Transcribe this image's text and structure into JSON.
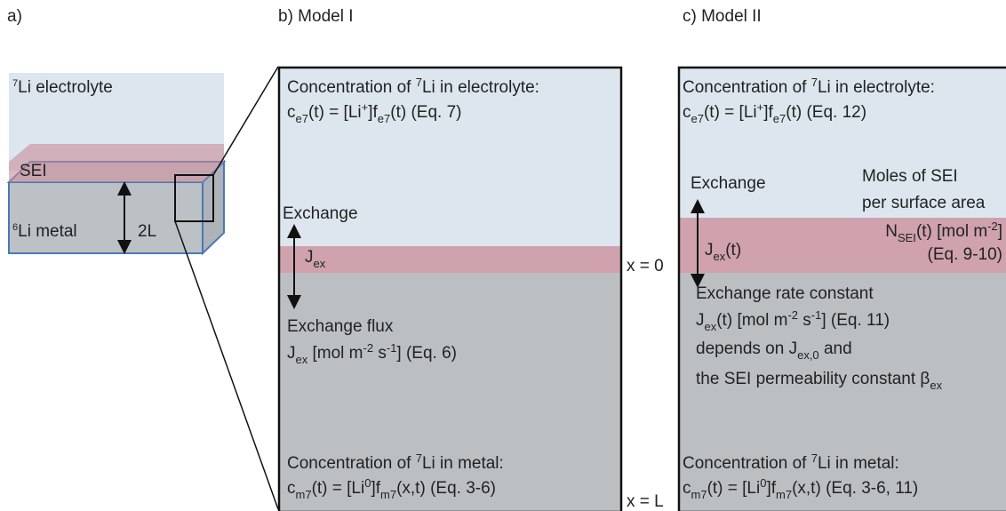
{
  "panel_a": {
    "label": "a)",
    "electrolyte": [
      "7",
      "Li electrolyte"
    ],
    "sei": "SEI",
    "metal": [
      "6",
      "Li metal"
    ],
    "thickness": "2L"
  },
  "panel_b": {
    "label": "b)  Model I",
    "electrolyte_heading": [
      "Concentration of ",
      "7",
      "Li in electrolyte:"
    ],
    "electrolyte_formula": [
      "c",
      "e7",
      "(t) = [Li",
      "+",
      "]f",
      "e7",
      "(t)  (Eq. 7)"
    ],
    "exchange": "Exchange",
    "jex": [
      "J",
      "ex"
    ],
    "flux_title": "Exchange flux",
    "flux": [
      "J",
      "ex",
      " [mol m",
      "-2",
      " s",
      "-1",
      "] (Eq. 6)"
    ],
    "metal_heading": [
      "Concentration of ",
      "7",
      "Li in metal:"
    ],
    "metal_formula": [
      "c",
      "m7",
      "(t) = [Li",
      "0",
      "]f",
      "m7",
      "(x,t)  (Eq. 3-6)"
    ],
    "x0": "x = 0",
    "xL": "x = L"
  },
  "panel_c": {
    "label": "c)  Model II",
    "electrolyte_heading": [
      "Concentration of ",
      "7",
      "Li in electrolyte:"
    ],
    "electrolyte_formula": [
      "c",
      "e7",
      "(t) = [Li",
      "+",
      "]f",
      "e7",
      "(t)  (Eq. 12)"
    ],
    "exchange": "Exchange",
    "sei_moles": [
      "Moles of SEI",
      "per surface area"
    ],
    "jex": [
      "J",
      "ex",
      "(t)"
    ],
    "n_sei": [
      "N",
      "SEI",
      "(t) [mol m",
      "-2",
      "]"
    ],
    "n_sei_eq": "(Eq. 9-10)",
    "rate_title": "Exchange rate constant",
    "rate": [
      "J",
      "ex",
      "(t) [mol m",
      "-2",
      " s",
      "-1",
      "] (Eq. 11)"
    ],
    "depends": [
      "depends on J",
      "ex,0",
      " and"
    ],
    "permeability": [
      "the SEI permeability constant β",
      "ex"
    ],
    "metal_heading": [
      "Concentration of ",
      "7",
      "Li in metal:"
    ],
    "metal_formula": [
      "c",
      "m7",
      "(t) = [Li",
      "0",
      "]f",
      "m7",
      "(x,t)  (Eq. 3-6, 11)"
    ]
  }
}
